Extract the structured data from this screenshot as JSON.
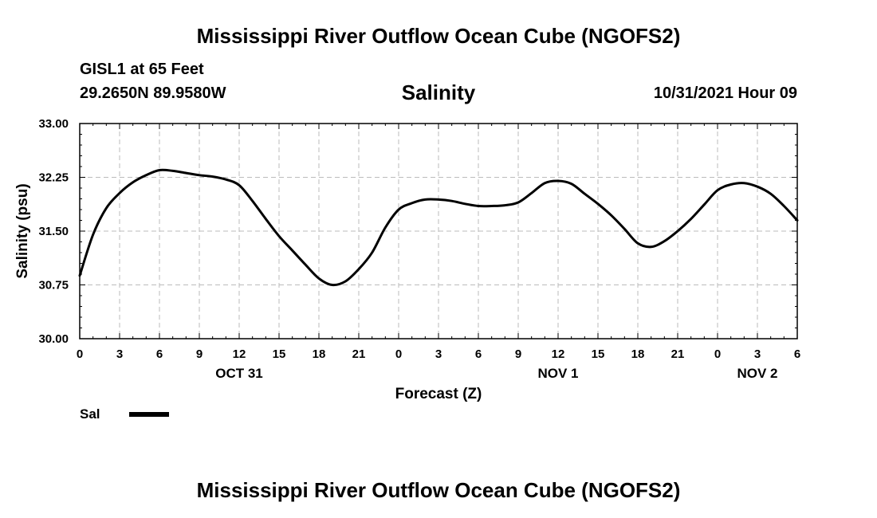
{
  "header": {
    "main_title": "Mississippi River Outflow Ocean Cube (NGOFS2)",
    "station": "GISL1 at 65 Feet",
    "coords": "29.2650N  89.9580W",
    "variable": "Salinity",
    "datetime": "10/31/2021 Hour 09"
  },
  "footer": {
    "title": "Mississippi River Outflow Ocean Cube (NGOFS2)"
  },
  "legend": {
    "label": "Sal"
  },
  "chart_data": {
    "type": "line",
    "title": "Salinity",
    "xlabel": "Forecast (Z)",
    "ylabel": "Salinity (psu)",
    "x_unit": "hours from 10/31 00Z",
    "xlim": [
      0,
      54
    ],
    "ylim": [
      30.0,
      33.0
    ],
    "grid": true,
    "yticks": [
      30.0,
      30.75,
      31.5,
      32.25,
      33.0
    ],
    "ytick_labels": [
      "30.00",
      "30.75",
      "31.50",
      "32.25",
      "33.00"
    ],
    "xticks": [
      0,
      3,
      6,
      9,
      12,
      15,
      18,
      21,
      24,
      27,
      30,
      33,
      36,
      39,
      42,
      45,
      48,
      51,
      54
    ],
    "xtick_labels": [
      "0",
      "3",
      "6",
      "9",
      "12",
      "15",
      "18",
      "21",
      "0",
      "3",
      "6",
      "9",
      "12",
      "15",
      "18",
      "21",
      "0",
      "3",
      "6"
    ],
    "date_labels": [
      {
        "x": 12,
        "label": "OCT 31"
      },
      {
        "x": 36,
        "label": "NOV 1"
      },
      {
        "x": 51,
        "label": "NOV 2"
      }
    ],
    "series": [
      {
        "name": "Sal",
        "x": [
          0,
          1,
          2,
          3,
          4,
          5,
          6,
          7,
          8,
          9,
          10,
          11,
          12,
          13,
          14,
          15,
          16,
          17,
          18,
          19,
          20,
          21,
          22,
          23,
          24,
          25,
          26,
          27,
          28,
          29,
          30,
          31,
          32,
          33,
          34,
          35,
          36,
          37,
          38,
          39,
          40,
          41,
          42,
          43,
          44,
          45,
          46,
          47,
          48,
          49,
          50,
          51,
          52,
          53,
          54
        ],
        "values": [
          30.88,
          31.45,
          31.82,
          32.03,
          32.18,
          32.28,
          32.35,
          32.34,
          32.31,
          32.28,
          32.26,
          32.22,
          32.14,
          31.92,
          31.67,
          31.43,
          31.23,
          31.03,
          30.84,
          30.75,
          30.8,
          30.97,
          31.2,
          31.55,
          31.8,
          31.89,
          31.94,
          31.94,
          31.92,
          31.88,
          31.85,
          31.85,
          31.86,
          31.9,
          32.03,
          32.17,
          32.2,
          32.16,
          32.02,
          31.88,
          31.72,
          31.53,
          31.33,
          31.28,
          31.36,
          31.5,
          31.67,
          31.87,
          32.07,
          32.15,
          32.17,
          32.12,
          32.02,
          31.85,
          31.65
        ]
      }
    ]
  }
}
